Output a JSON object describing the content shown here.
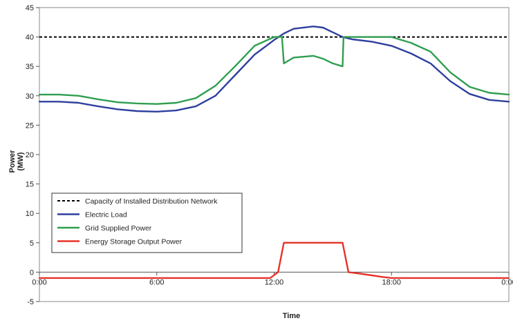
{
  "chart_data": {
    "type": "line",
    "title": "",
    "xlabel": "Time",
    "ylabel_lines": [
      "Power",
      "(MW)"
    ],
    "x_ticks": [
      0,
      6,
      12,
      18,
      24
    ],
    "x_tick_labels": [
      "0:00",
      "6:00",
      "12:00",
      "18:00",
      "0:00"
    ],
    "xlim": [
      0,
      24
    ],
    "ylim": [
      -5,
      45
    ],
    "y_ticks": [
      -5,
      0,
      5,
      10,
      15,
      20,
      25,
      30,
      35,
      40,
      45
    ],
    "y_tick_labels": [
      "-5",
      "0",
      "5",
      "10",
      "15",
      "20",
      "25",
      "30",
      "35",
      "40",
      "45"
    ],
    "grid": false,
    "legend_placement": "lower-left",
    "series": [
      {
        "name": "Capacity of Installed Distribution Network",
        "color": "#000000",
        "style": "dashed",
        "x": [
          0,
          24
        ],
        "y": [
          40,
          40
        ]
      },
      {
        "name": "Electric Load",
        "color": "#2e3f9e",
        "style": "solid",
        "x": [
          0,
          1,
          2,
          3,
          4,
          5,
          6,
          7,
          8,
          9,
          10,
          11,
          12,
          12.5,
          13,
          14,
          14.5,
          15,
          15.5,
          16,
          17,
          18,
          19,
          20,
          21,
          22,
          23,
          24
        ],
        "y": [
          29,
          29,
          28.8,
          28.2,
          27.7,
          27.4,
          27.3,
          27.5,
          28.2,
          30,
          33.5,
          37,
          39.5,
          40.6,
          41.4,
          41.8,
          41.6,
          40.8,
          40,
          39.6,
          39.2,
          38.5,
          37.2,
          35.5,
          32.5,
          30.3,
          29.3,
          29
        ]
      },
      {
        "name": "Grid Supplied Power",
        "color": "#2e9e4f",
        "style": "solid",
        "x": [
          0,
          1,
          2,
          3,
          4,
          5,
          6,
          7,
          8,
          9,
          10,
          11,
          12,
          12.4,
          12.5,
          13,
          14,
          14.5,
          15,
          15.5,
          15.55,
          16,
          17,
          18,
          19,
          20,
          21,
          22,
          23,
          24
        ],
        "y": [
          30.2,
          30.2,
          30,
          29.4,
          28.9,
          28.7,
          28.6,
          28.8,
          29.6,
          31.7,
          35,
          38.5,
          40,
          40,
          35.5,
          36.5,
          36.8,
          36.3,
          35.5,
          35,
          40,
          40,
          40,
          40,
          39,
          37.5,
          34,
          31.5,
          30.5,
          30.2
        ]
      },
      {
        "name": "Energy Storage Output Power",
        "color": "#e53228",
        "style": "solid",
        "x": [
          0,
          11.3,
          11.8,
          12.2,
          12.5,
          15.5,
          15.8,
          16.5,
          17.5,
          18,
          24
        ],
        "y": [
          -1,
          -1,
          -1,
          0,
          5,
          5,
          0,
          -0.3,
          -0.8,
          -1,
          -1
        ]
      }
    ]
  }
}
